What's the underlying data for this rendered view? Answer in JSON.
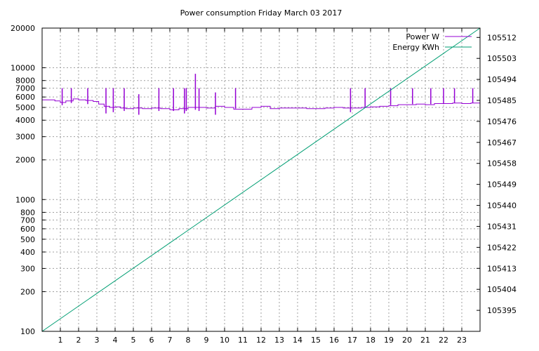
{
  "chart_data": {
    "type": "line",
    "title": "Power consumption Friday March 03 2017",
    "x": {
      "min": 0,
      "max": 24,
      "tick_values": [
        1,
        2,
        3,
        4,
        5,
        6,
        7,
        8,
        9,
        10,
        11,
        12,
        13,
        14,
        15,
        16,
        17,
        18,
        19,
        20,
        21,
        22,
        23
      ],
      "tick_labels": [
        "1",
        "2",
        "3",
        "4",
        "5",
        "6",
        "7",
        "8",
        "9",
        "10",
        "11",
        "12",
        "13",
        "14",
        "15",
        "16",
        "17",
        "18",
        "19",
        "20",
        "21",
        "22",
        "23"
      ],
      "grid": true
    },
    "y_left": {
      "scale": "log",
      "min": 100,
      "max": 20000,
      "tick_values": [
        100,
        200,
        300,
        400,
        500,
        600,
        700,
        800,
        1000,
        2000,
        3000,
        4000,
        5000,
        6000,
        7000,
        8000,
        10000,
        20000
      ],
      "tick_labels": [
        "100",
        "200",
        "300",
        "400",
        "500",
        "600",
        "700",
        "800",
        "1000",
        "2000",
        "3000",
        "4000",
        "5000",
        "6000",
        "7000",
        "8000",
        "10000",
        "20000"
      ],
      "grid": true
    },
    "y_right": {
      "scale": "linear",
      "min": 105386,
      "max": 105516,
      "tick_values": [
        105395,
        105404,
        105413,
        105422,
        105431,
        105440,
        105449,
        105458,
        105467,
        105476,
        105485,
        105494,
        105503,
        105512
      ],
      "tick_labels": [
        "105395",
        "105404",
        "105413",
        "105422",
        "105431",
        "105440",
        "105449",
        "105458",
        "105467",
        "105476",
        "105485",
        "105494",
        "105503",
        "105512"
      ]
    },
    "legend": {
      "position": "top-right"
    },
    "series": [
      {
        "name": "Power W",
        "axis": "left",
        "color": "#9400d3",
        "points": [
          [
            0.0,
            5700
          ],
          [
            0.4,
            5700
          ],
          [
            0.7,
            5600
          ],
          [
            1.0,
            5450
          ],
          [
            1.3,
            5600
          ],
          [
            1.7,
            5800
          ],
          [
            2.0,
            5700
          ],
          [
            2.4,
            5650
          ],
          [
            2.8,
            5550
          ],
          [
            3.1,
            5300
          ],
          [
            3.4,
            5100
          ],
          [
            3.7,
            5000
          ],
          [
            4.0,
            5050
          ],
          [
            4.3,
            4950
          ],
          [
            4.6,
            4900
          ],
          [
            5.0,
            4950
          ],
          [
            5.5,
            4900
          ],
          [
            6.0,
            4950
          ],
          [
            6.5,
            4900
          ],
          [
            7.0,
            4800
          ],
          [
            7.5,
            4900
          ],
          [
            8.0,
            5000
          ],
          [
            8.5,
            5000
          ],
          [
            9.0,
            4950
          ],
          [
            9.5,
            5100
          ],
          [
            10.0,
            5000
          ],
          [
            10.5,
            4850
          ],
          [
            11.0,
            4850
          ],
          [
            11.5,
            5000
          ],
          [
            12.0,
            5100
          ],
          [
            12.5,
            4900
          ],
          [
            13.0,
            4950
          ],
          [
            13.5,
            4950
          ],
          [
            14.0,
            4950
          ],
          [
            14.5,
            4900
          ],
          [
            15.0,
            4900
          ],
          [
            15.5,
            4950
          ],
          [
            16.0,
            5000
          ],
          [
            16.5,
            4950
          ],
          [
            17.0,
            4950
          ],
          [
            17.5,
            5000
          ],
          [
            18.0,
            5050
          ],
          [
            18.5,
            5100
          ],
          [
            19.0,
            5150
          ],
          [
            19.5,
            5250
          ],
          [
            20.0,
            5250
          ],
          [
            20.5,
            5300
          ],
          [
            21.0,
            5250
          ],
          [
            21.5,
            5350
          ],
          [
            22.0,
            5350
          ],
          [
            22.5,
            5400
          ],
          [
            23.0,
            5350
          ],
          [
            23.5,
            5400
          ],
          [
            24.0,
            5400
          ]
        ],
        "spikes": [
          [
            1.1,
            7000,
            5200
          ],
          [
            1.6,
            7000,
            5400
          ],
          [
            2.5,
            7000,
            5300
          ],
          [
            3.5,
            7000,
            4500
          ],
          [
            3.9,
            7000,
            4600
          ],
          [
            4.5,
            7000,
            4700
          ],
          [
            5.3,
            6300,
            4400
          ],
          [
            6.4,
            7000,
            4700
          ],
          [
            7.2,
            7000,
            4700
          ],
          [
            7.8,
            7000,
            4500
          ],
          [
            7.9,
            7000,
            4700
          ],
          [
            8.4,
            9000,
            4800
          ],
          [
            8.6,
            7000,
            4700
          ],
          [
            9.5,
            6500,
            4400
          ],
          [
            10.6,
            7000,
            4900
          ],
          [
            16.9,
            7000,
            4600
          ],
          [
            17.7,
            7000,
            5000
          ],
          [
            19.1,
            7000,
            5200
          ],
          [
            20.3,
            7000,
            5300
          ],
          [
            21.3,
            7000,
            5300
          ],
          [
            22.0,
            7000,
            5300
          ],
          [
            22.6,
            7000,
            5400
          ],
          [
            23.6,
            7000,
            5400
          ]
        ]
      },
      {
        "name": "Energy KWh",
        "axis": "right",
        "color": "#009e73",
        "points": [
          [
            0,
            105386
          ],
          [
            24,
            105516
          ]
        ]
      }
    ]
  }
}
